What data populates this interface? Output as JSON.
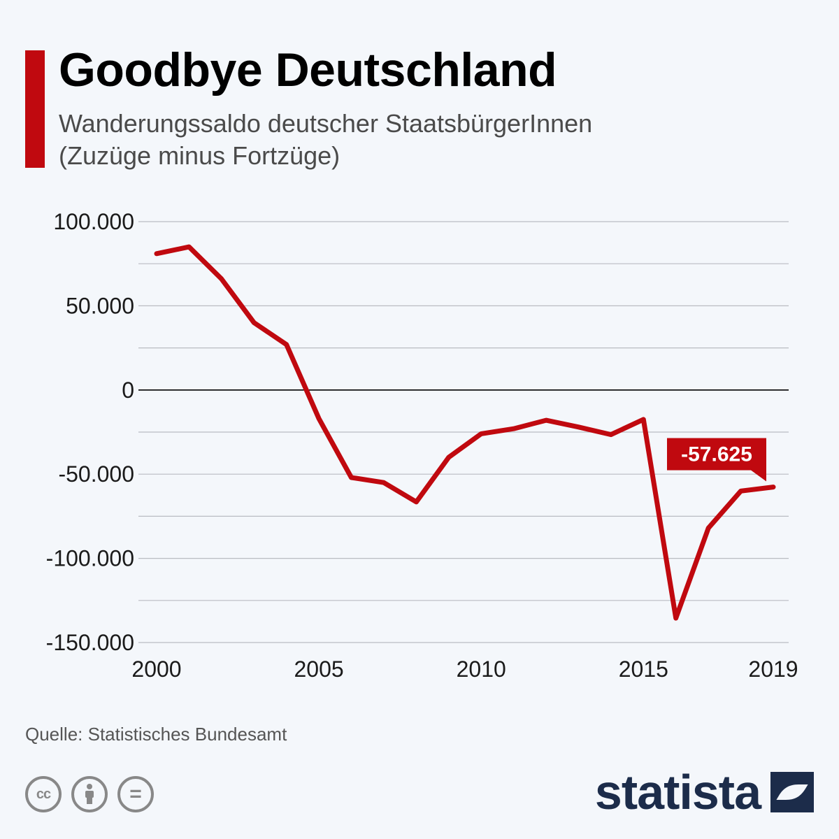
{
  "header": {
    "title": "Goodbye Deutschland",
    "subtitle_line1": "Wanderungssaldo deutscher StaatsbürgerInnen",
    "subtitle_line2": "(Zuzüge minus Fortzüge)"
  },
  "footer": {
    "source": "Quelle: Statistisches Bundesamt",
    "brand": "statista",
    "license_icons": [
      "cc-icon",
      "attribution-icon",
      "no-derivatives-icon"
    ]
  },
  "colors": {
    "accent": "#c0090f",
    "line": "#c0090f",
    "grid": "#b9bcc2",
    "zero_line": "#000000",
    "brand": "#1c2c4a"
  },
  "chart_data": {
    "type": "line",
    "x": [
      2000,
      2001,
      2002,
      2003,
      2004,
      2005,
      2006,
      2007,
      2008,
      2009,
      2010,
      2011,
      2012,
      2013,
      2014,
      2015,
      2016,
      2017,
      2018,
      2019
    ],
    "series": [
      {
        "values": [
          81000,
          85000,
          66000,
          40000,
          27000,
          -17000,
          -52000,
          -55000,
          -66500,
          -40000,
          -26000,
          -23000,
          -18000,
          -22000,
          -26500,
          -17500,
          -135500,
          -82000,
          -60000,
          -57625
        ]
      }
    ],
    "xlim": [
      2000,
      2019
    ],
    "ylim": [
      -150000,
      100000
    ],
    "xticks": [
      2000,
      2005,
      2010,
      2015,
      2019
    ],
    "xtick_labels": [
      "2000",
      "2005",
      "2010",
      "2015",
      "2019"
    ],
    "yticks": [
      100000,
      50000,
      0,
      -50000,
      -100000,
      -150000
    ],
    "ytick_labels": [
      "100.000",
      "50.000",
      "0",
      "-50.000",
      "-100.000",
      "-150.000"
    ],
    "minor_gridlines": [
      75000,
      25000,
      -25000,
      -75000,
      -125000
    ],
    "grid": true,
    "callout": {
      "x": 2019,
      "value": -57625,
      "label": "-57.625"
    }
  }
}
